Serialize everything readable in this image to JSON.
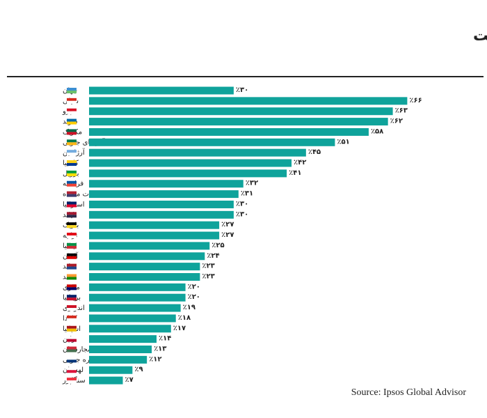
{
  "chart_data": {
    "type": "bar",
    "orientation": "horizontal",
    "title": "جنایت و خشونت",
    "source": "Source: Ipsos Global Advisor",
    "color": "#0fa39b",
    "categories": [
      "جهان",
      "شیلی",
      "پرو",
      "سوئد",
      "مکزیک",
      "آفریقای جنوبی",
      "آرژانتین",
      "کلمبیا",
      "برزیل",
      "فرانسه",
      "ایالات متحده",
      "استرالیا",
      "تایلند",
      "بلژیک",
      "ترکیه",
      "ایتالیا",
      "آلمان",
      "هلند",
      "هند",
      "مالزی",
      "بریتانیا",
      "اندونزی",
      "کانادا",
      "اسپانیا",
      "ژاپن",
      "مجارستان",
      "کره جنوبی",
      "لهستان",
      "سنگاپور"
    ],
    "values": [
      30,
      66,
      63,
      62,
      58,
      51,
      45,
      42,
      41,
      32,
      31,
      30,
      30,
      27,
      27,
      25,
      24,
      23,
      23,
      20,
      20,
      19,
      18,
      17,
      14,
      13,
      12,
      9,
      7
    ],
    "value_labels": [
      "٪۳۰",
      "٪۶۶",
      "٪۶۳",
      "٪۶۲",
      "٪۵۸",
      "٪۵۱",
      "٪۴۵",
      "٪۴۲",
      "٪۴۱",
      "٪۳۲",
      "٪۳۱",
      "٪۳۰",
      "٪۳۰",
      "٪۲۷",
      "٪۲۷",
      "٪۲۵",
      "٪۲۴",
      "٪۲۳",
      "٪۲۳",
      "٪۲۰",
      "٪۲۰",
      "٪۱۹",
      "٪۱۸",
      "٪۱۷",
      "٪۱۴",
      "٪۱۳",
      "٪۱۲",
      "٪۹",
      "٪۷"
    ]
  }
}
